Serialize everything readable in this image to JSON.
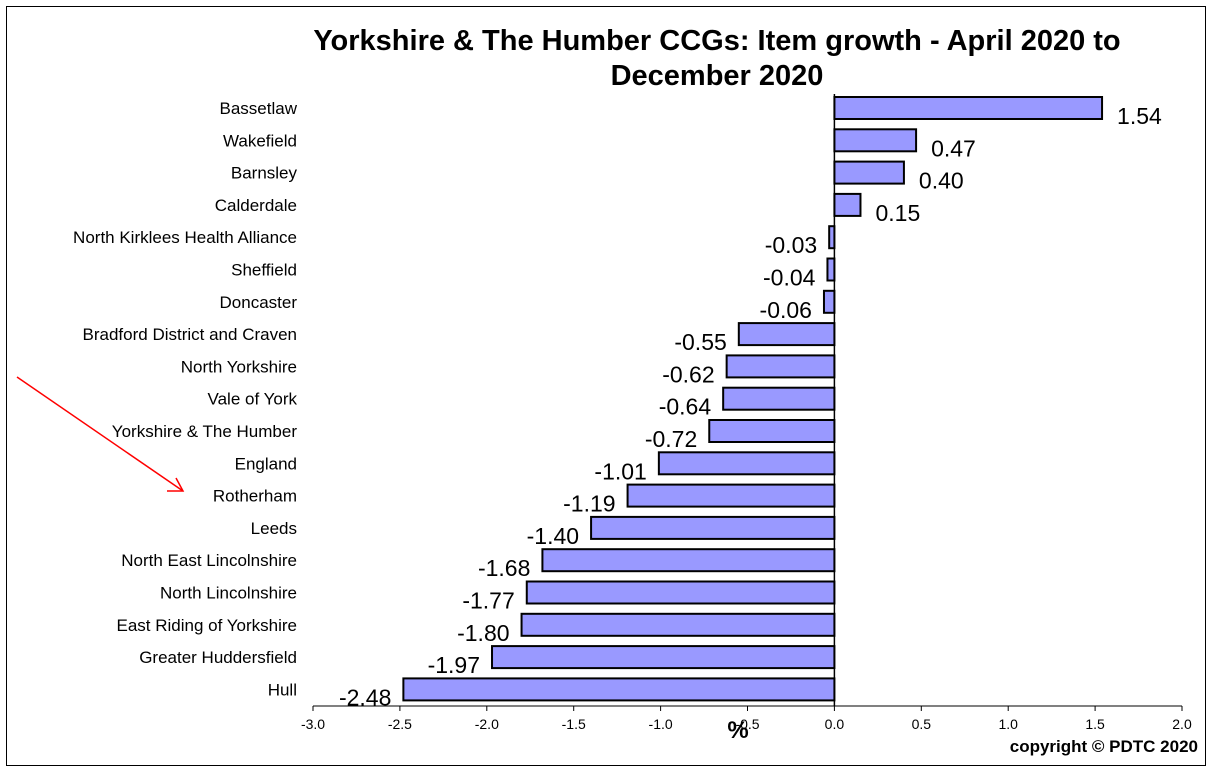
{
  "chart_data": {
    "type": "bar",
    "orientation": "horizontal",
    "title_line1": "Yorkshire & The Humber CCGs: Item growth - April 2020 to",
    "title_line2": "December 2020",
    "xlabel": "%",
    "ylabel": "",
    "categories": [
      "Bassetlaw",
      "Wakefield",
      "Barnsley",
      "Calderdale",
      "North Kirklees Health Alliance",
      "Sheffield",
      "Doncaster",
      "Bradford District and Craven",
      "North Yorkshire",
      "Vale of York",
      "Yorkshire & The Humber",
      "England",
      "Rotherham",
      "Leeds",
      "North East Lincolnshire",
      "North Lincolnshire",
      "East Riding of Yorkshire",
      "Greater Huddersfield",
      "Hull"
    ],
    "values": [
      1.54,
      0.47,
      0.4,
      0.15,
      -0.03,
      -0.04,
      -0.06,
      -0.55,
      -0.62,
      -0.64,
      -0.72,
      -1.01,
      -1.19,
      -1.4,
      -1.68,
      -1.77,
      -1.8,
      -1.97,
      -2.48
    ],
    "value_labels": [
      "1.54",
      "0.47",
      "0.40",
      "0.15",
      "-0.03",
      "-0.04",
      "-0.06",
      "-0.55",
      "-0.62",
      "-0.64",
      "-0.72",
      "-1.01",
      "-1.19",
      "-1.40",
      "-1.68",
      "-1.77",
      "-1.80",
      "-1.97",
      "-2.48"
    ],
    "xlim": [
      -3.0,
      2.0
    ],
    "xticks": [
      "-3.0",
      "-2.5",
      "-2.0",
      "-1.5",
      "-1.0",
      "-0.5",
      "0.0",
      "0.5",
      "1.0",
      "1.5",
      "2.0"
    ],
    "grid": false,
    "bar_color": "#9999ff",
    "bar_outline": "#000000",
    "annotation": {
      "type": "arrow",
      "color": "#ff0000",
      "points_to": "Rotherham"
    },
    "copyright": "copyright © PDTC 2020"
  }
}
